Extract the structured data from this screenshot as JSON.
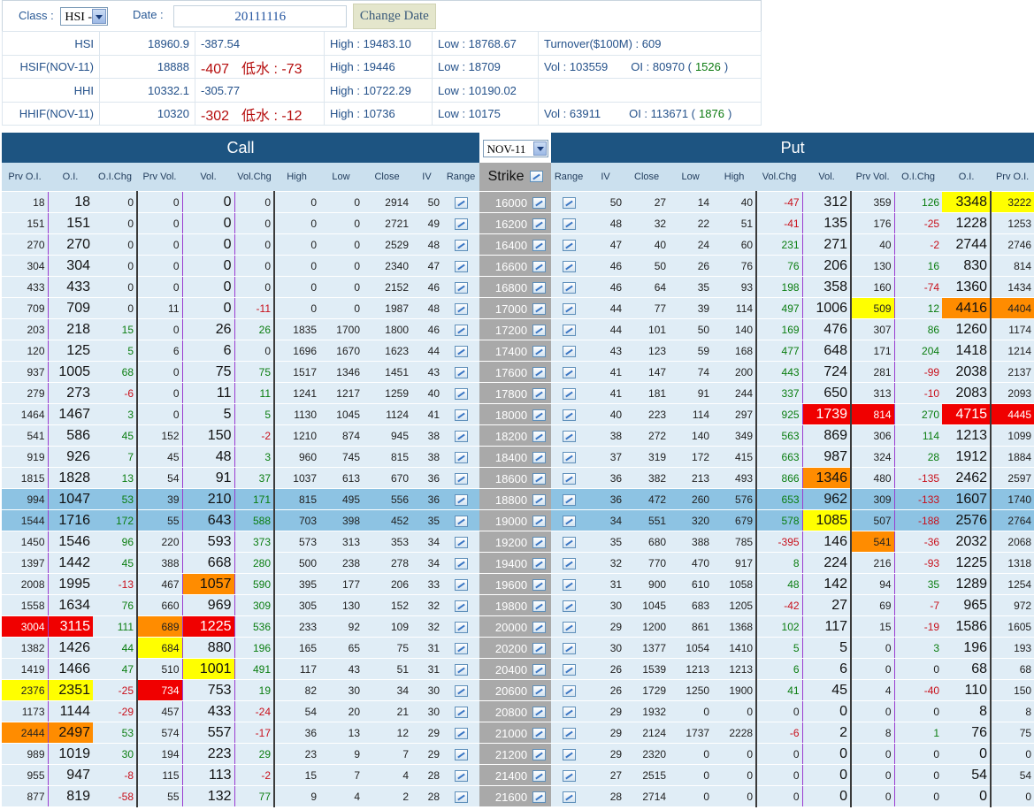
{
  "header": {
    "class_label": "Class :",
    "class_value": "HSI -",
    "date_label": "Date :",
    "date_value": "20111116",
    "change_date_label": "Change Date"
  },
  "indices": {
    "hsi": {
      "name": "HSI",
      "last": "18960.9",
      "change": "-387.54",
      "high": "High : 19483.10",
      "low": "Low : 18768.67",
      "turnover": "Turnover($100M) : 609"
    },
    "hsif": {
      "name": "HSIF(NOV-11)",
      "last": "18888",
      "change": "-407",
      "discount": "低水 : -73",
      "high": "High : 19446",
      "low": "Low : 18709",
      "vol": "Vol : 103559",
      "oi": "OI : 80970 (",
      "oi_chg": "1526",
      "oi_close": ")"
    },
    "hhi": {
      "name": "HHI",
      "last": "10332.1",
      "change": "-305.77",
      "high": "High : 10722.29",
      "low": "Low : 10190.02"
    },
    "hhif": {
      "name": "HHIF(NOV-11)",
      "last": "10320",
      "change": "-302",
      "discount": "低水 : -12",
      "high": "High : 10736",
      "low": "Low : 10175",
      "vol": "Vol : 63911",
      "oi": "OI : 113671 (",
      "oi_chg": "1876",
      "oi_close": ")"
    }
  },
  "table": {
    "call_title": "Call",
    "put_title": "Put",
    "month_select": "NOV-11",
    "call_headers": [
      "Prv O.I.",
      "O.I.",
      "O.I.Chg",
      "Prv Vol.",
      "Vol.",
      "Vol.Chg",
      "High",
      "Low",
      "Close",
      "IV",
      "Range"
    ],
    "strike_header": "Strike",
    "put_headers": [
      "Range",
      "IV",
      "Close",
      "Low",
      "High",
      "Vol.Chg",
      "Vol.",
      "Prv Vol.",
      "O.I.Chg",
      "O.I.",
      "Prv O.I."
    ],
    "rows": [
      {
        "strike": "16000",
        "c": [
          "18",
          "18",
          "0",
          "0",
          "0",
          "0",
          "0",
          "0",
          "2914",
          "50"
        ],
        "p": [
          "50",
          "27",
          "14",
          "40",
          "-47",
          "312",
          "359",
          "126",
          "3348",
          "3222"
        ],
        "hl": {
          "p_oi": "yel",
          "p_prvoi": "yel"
        }
      },
      {
        "strike": "16200",
        "c": [
          "151",
          "151",
          "0",
          "0",
          "0",
          "0",
          "0",
          "0",
          "2721",
          "49"
        ],
        "p": [
          "48",
          "32",
          "22",
          "51",
          "-41",
          "135",
          "176",
          "-25",
          "1228",
          "1253"
        ]
      },
      {
        "strike": "16400",
        "c": [
          "270",
          "270",
          "0",
          "0",
          "0",
          "0",
          "0",
          "0",
          "2529",
          "48"
        ],
        "p": [
          "47",
          "40",
          "24",
          "60",
          "231",
          "271",
          "40",
          "-2",
          "2744",
          "2746"
        ]
      },
      {
        "strike": "16600",
        "c": [
          "304",
          "304",
          "0",
          "0",
          "0",
          "0",
          "0",
          "0",
          "2340",
          "47"
        ],
        "p": [
          "46",
          "50",
          "26",
          "76",
          "76",
          "206",
          "130",
          "16",
          "830",
          "814"
        ]
      },
      {
        "strike": "16800",
        "c": [
          "433",
          "433",
          "0",
          "0",
          "0",
          "0",
          "0",
          "0",
          "2152",
          "46"
        ],
        "p": [
          "46",
          "64",
          "35",
          "93",
          "198",
          "358",
          "160",
          "-74",
          "1360",
          "1434"
        ]
      },
      {
        "strike": "17000",
        "c": [
          "709",
          "709",
          "0",
          "11",
          "0",
          "-11",
          "0",
          "0",
          "1987",
          "48"
        ],
        "p": [
          "44",
          "77",
          "39",
          "114",
          "497",
          "1006",
          "509",
          "12",
          "4416",
          "4404"
        ],
        "hl": {
          "p_prvvol": "yel",
          "p_oi": "org",
          "p_prvoi": "org"
        }
      },
      {
        "strike": "17200",
        "c": [
          "203",
          "218",
          "15",
          "0",
          "26",
          "26",
          "1835",
          "1700",
          "1800",
          "46"
        ],
        "p": [
          "44",
          "101",
          "50",
          "140",
          "169",
          "476",
          "307",
          "86",
          "1260",
          "1174"
        ]
      },
      {
        "strike": "17400",
        "c": [
          "120",
          "125",
          "5",
          "6",
          "6",
          "0",
          "1696",
          "1670",
          "1623",
          "44"
        ],
        "p": [
          "43",
          "123",
          "59",
          "168",
          "477",
          "648",
          "171",
          "204",
          "1418",
          "1214"
        ]
      },
      {
        "strike": "17600",
        "c": [
          "937",
          "1005",
          "68",
          "0",
          "75",
          "75",
          "1517",
          "1346",
          "1451",
          "43"
        ],
        "p": [
          "41",
          "147",
          "74",
          "200",
          "443",
          "724",
          "281",
          "-99",
          "2038",
          "2137"
        ]
      },
      {
        "strike": "17800",
        "c": [
          "279",
          "273",
          "-6",
          "0",
          "11",
          "11",
          "1241",
          "1217",
          "1259",
          "40"
        ],
        "p": [
          "41",
          "181",
          "91",
          "244",
          "337",
          "650",
          "313",
          "-10",
          "2083",
          "2093"
        ]
      },
      {
        "strike": "18000",
        "c": [
          "1464",
          "1467",
          "3",
          "0",
          "5",
          "5",
          "1130",
          "1045",
          "1124",
          "41"
        ],
        "p": [
          "40",
          "223",
          "114",
          "297",
          "925",
          "1739",
          "814",
          "270",
          "4715",
          "4445"
        ],
        "hl": {
          "p_vol": "red",
          "p_prvvol": "red",
          "p_oi": "red",
          "p_prvoi": "red"
        }
      },
      {
        "strike": "18200",
        "c": [
          "541",
          "586",
          "45",
          "152",
          "150",
          "-2",
          "1210",
          "874",
          "945",
          "38"
        ],
        "p": [
          "38",
          "272",
          "140",
          "349",
          "563",
          "869",
          "306",
          "114",
          "1213",
          "1099"
        ]
      },
      {
        "strike": "18400",
        "c": [
          "919",
          "926",
          "7",
          "45",
          "48",
          "3",
          "960",
          "745",
          "815",
          "38"
        ],
        "p": [
          "37",
          "319",
          "172",
          "415",
          "663",
          "987",
          "324",
          "28",
          "1912",
          "1884"
        ]
      },
      {
        "strike": "18600",
        "c": [
          "1815",
          "1828",
          "13",
          "54",
          "91",
          "37",
          "1037",
          "613",
          "670",
          "36"
        ],
        "p": [
          "36",
          "382",
          "213",
          "493",
          "866",
          "1346",
          "480",
          "-135",
          "2462",
          "2597"
        ],
        "hl": {
          "p_vol": "org"
        }
      },
      {
        "strike": "18800",
        "c": [
          "994",
          "1047",
          "53",
          "39",
          "210",
          "171",
          "815",
          "495",
          "556",
          "36"
        ],
        "p": [
          "36",
          "472",
          "260",
          "576",
          "653",
          "962",
          "309",
          "-133",
          "1607",
          "1740"
        ],
        "atm": true
      },
      {
        "strike": "19000",
        "c": [
          "1544",
          "1716",
          "172",
          "55",
          "643",
          "588",
          "703",
          "398",
          "452",
          "35"
        ],
        "p": [
          "34",
          "551",
          "320",
          "679",
          "578",
          "1085",
          "507",
          "-188",
          "2576",
          "2764"
        ],
        "atm": true,
        "hl": {
          "p_vol": "yel"
        }
      },
      {
        "strike": "19200",
        "c": [
          "1450",
          "1546",
          "96",
          "220",
          "593",
          "373",
          "573",
          "313",
          "353",
          "34"
        ],
        "p": [
          "35",
          "680",
          "388",
          "785",
          "-395",
          "146",
          "541",
          "-36",
          "2032",
          "2068"
        ],
        "hl": {
          "p_prvvol": "org"
        }
      },
      {
        "strike": "19400",
        "c": [
          "1397",
          "1442",
          "45",
          "388",
          "668",
          "280",
          "500",
          "238",
          "278",
          "34"
        ],
        "p": [
          "32",
          "770",
          "470",
          "917",
          "8",
          "224",
          "216",
          "-93",
          "1225",
          "1318"
        ]
      },
      {
        "strike": "19600",
        "c": [
          "2008",
          "1995",
          "-13",
          "467",
          "1057",
          "590",
          "395",
          "177",
          "206",
          "33"
        ],
        "p": [
          "31",
          "900",
          "610",
          "1058",
          "48",
          "142",
          "94",
          "35",
          "1289",
          "1254"
        ],
        "hl": {
          "c_vol": "org"
        }
      },
      {
        "strike": "19800",
        "c": [
          "1558",
          "1634",
          "76",
          "660",
          "969",
          "309",
          "305",
          "130",
          "152",
          "32"
        ],
        "p": [
          "30",
          "1045",
          "683",
          "1205",
          "-42",
          "27",
          "69",
          "-7",
          "965",
          "972"
        ]
      },
      {
        "strike": "20000",
        "c": [
          "3004",
          "3115",
          "111",
          "689",
          "1225",
          "536",
          "233",
          "92",
          "109",
          "32"
        ],
        "p": [
          "29",
          "1200",
          "861",
          "1368",
          "102",
          "117",
          "15",
          "-19",
          "1586",
          "1605"
        ],
        "hl": {
          "c_prvoi": "red",
          "c_oi": "red",
          "c_prvvol": "org",
          "c_vol": "red"
        }
      },
      {
        "strike": "20200",
        "c": [
          "1382",
          "1426",
          "44",
          "684",
          "880",
          "196",
          "165",
          "65",
          "75",
          "31"
        ],
        "p": [
          "30",
          "1377",
          "1054",
          "1410",
          "5",
          "5",
          "0",
          "3",
          "196",
          "193"
        ],
        "hl": {
          "c_prvvol": "yel"
        }
      },
      {
        "strike": "20400",
        "c": [
          "1419",
          "1466",
          "47",
          "510",
          "1001",
          "491",
          "117",
          "43",
          "51",
          "31"
        ],
        "p": [
          "26",
          "1539",
          "1213",
          "1213",
          "6",
          "6",
          "0",
          "0",
          "68",
          "68"
        ],
        "hl": {
          "c_vol": "yel"
        }
      },
      {
        "strike": "20600",
        "c": [
          "2376",
          "2351",
          "-25",
          "734",
          "753",
          "19",
          "82",
          "30",
          "34",
          "30"
        ],
        "p": [
          "26",
          "1729",
          "1250",
          "1900",
          "41",
          "45",
          "4",
          "-40",
          "110",
          "150"
        ],
        "hl": {
          "c_prvoi": "yel",
          "c_oi": "yel",
          "c_prvvol": "red"
        }
      },
      {
        "strike": "20800",
        "c": [
          "1173",
          "1144",
          "-29",
          "457",
          "433",
          "-24",
          "54",
          "20",
          "21",
          "30"
        ],
        "p": [
          "29",
          "1932",
          "0",
          "0",
          "0",
          "0",
          "0",
          "0",
          "8",
          "8"
        ]
      },
      {
        "strike": "21000",
        "c": [
          "2444",
          "2497",
          "53",
          "574",
          "557",
          "-17",
          "36",
          "13",
          "12",
          "29"
        ],
        "p": [
          "29",
          "2124",
          "1737",
          "2228",
          "-6",
          "2",
          "8",
          "1",
          "76",
          "75"
        ],
        "hl": {
          "c_prvoi": "org",
          "c_oi": "org"
        }
      },
      {
        "strike": "21200",
        "c": [
          "989",
          "1019",
          "30",
          "194",
          "223",
          "29",
          "23",
          "9",
          "7",
          "29"
        ],
        "p": [
          "29",
          "2320",
          "0",
          "0",
          "0",
          "0",
          "0",
          "0",
          "0",
          "0"
        ]
      },
      {
        "strike": "21400",
        "c": [
          "955",
          "947",
          "-8",
          "115",
          "113",
          "-2",
          "15",
          "7",
          "4",
          "28"
        ],
        "p": [
          "27",
          "2515",
          "0",
          "0",
          "0",
          "0",
          "0",
          "0",
          "54",
          "54"
        ]
      },
      {
        "strike": "21600",
        "c": [
          "877",
          "819",
          "-58",
          "55",
          "132",
          "77",
          "9",
          "4",
          "2",
          "28"
        ],
        "p": [
          "28",
          "2714",
          "0",
          "0",
          "0",
          "0",
          "0",
          "0",
          "0",
          "0"
        ]
      }
    ]
  },
  "colors": {
    "header_bg": "#1d5481",
    "row_bg": "#e0edf6",
    "atm_bg": "#8dc3e3",
    "negative": "#c8101b",
    "positive": "#0a7d10",
    "yellow": "#ffff00",
    "orange": "#ff8c00",
    "red": "#f00000"
  },
  "icons": {
    "range_icon": "line-chart-icon",
    "strike_icon": "line-chart-icon",
    "select_arrow": "chevron-down-icon"
  }
}
